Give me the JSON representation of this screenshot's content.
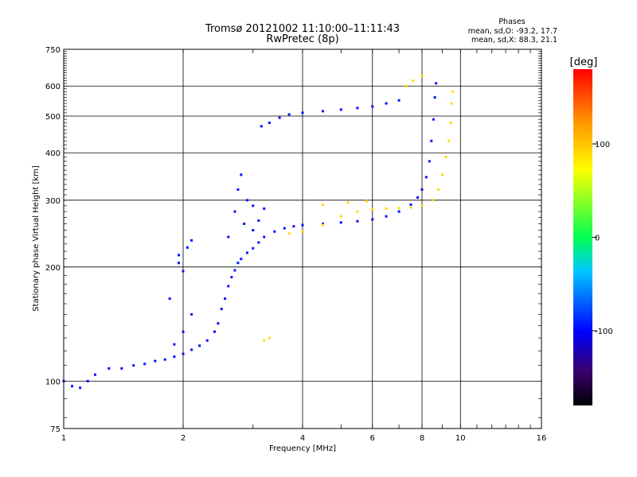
{
  "chart_data": {
    "type": "scatter",
    "title": "Tromsø 20121002 11:10:00–11:11:43",
    "subtitle": "RwPretec (8p)",
    "xlabel": "Frequency [MHz]",
    "ylabel": "Stationary phase Virtual Height [km]",
    "x_scale": "log",
    "y_scale": "log",
    "xlim": [
      1,
      16
    ],
    "ylim": [
      75,
      750
    ],
    "x_ticks": [
      1,
      2,
      4,
      6,
      8,
      10,
      16
    ],
    "x_tick_labels": [
      "1",
      "2",
      "4",
      "6",
      "8",
      "10",
      "16"
    ],
    "y_ticks": [
      75,
      100,
      200,
      300,
      400,
      500,
      600,
      750
    ],
    "y_tick_labels": [
      "75",
      "100",
      "200",
      "300",
      "400",
      "500",
      "600",
      "750"
    ],
    "grid": true,
    "legend": {
      "title": "Phases",
      "lines": [
        "mean, sd,O: -93.2, 17.7",
        "mean, sd,X:  88.3, 21.1"
      ]
    },
    "colorbar": {
      "label": "[deg]",
      "range": [
        -180,
        180
      ],
      "ticks": [
        100,
        0,
        -100
      ],
      "tick_labels": [
        "100",
        "0",
        "-100"
      ]
    },
    "series": [
      {
        "mode": "O",
        "phase_deg": -95,
        "points": [
          [
            1.0,
            100
          ],
          [
            1.05,
            97
          ],
          [
            1.1,
            96
          ],
          [
            1.15,
            100
          ],
          [
            1.2,
            104
          ],
          [
            1.3,
            108
          ],
          [
            1.4,
            108
          ],
          [
            1.5,
            110
          ],
          [
            1.6,
            111
          ],
          [
            1.7,
            113
          ],
          [
            1.8,
            114
          ],
          [
            1.9,
            116
          ],
          [
            2.0,
            118
          ],
          [
            2.1,
            121
          ],
          [
            2.2,
            124
          ],
          [
            2.3,
            128
          ],
          [
            2.4,
            135
          ],
          [
            2.45,
            142
          ],
          [
            2.5,
            155
          ],
          [
            2.55,
            165
          ],
          [
            2.6,
            178
          ],
          [
            2.65,
            188
          ],
          [
            2.7,
            196
          ],
          [
            2.75,
            205
          ],
          [
            2.8,
            210
          ],
          [
            2.9,
            218
          ],
          [
            3.0,
            224
          ],
          [
            3.1,
            232
          ],
          [
            3.2,
            240
          ],
          [
            3.4,
            248
          ],
          [
            3.6,
            253
          ],
          [
            3.8,
            256
          ],
          [
            4.0,
            258
          ],
          [
            4.5,
            260
          ],
          [
            5.0,
            262
          ],
          [
            5.5,
            264
          ],
          [
            6.0,
            267
          ],
          [
            6.5,
            272
          ],
          [
            7.0,
            280
          ],
          [
            7.5,
            292
          ],
          [
            7.8,
            305
          ],
          [
            8.0,
            320
          ],
          [
            8.2,
            345
          ],
          [
            8.35,
            380
          ],
          [
            8.45,
            430
          ],
          [
            8.55,
            490
          ],
          [
            8.62,
            560
          ],
          [
            8.68,
            610
          ],
          [
            1.9,
            125
          ],
          [
            2.0,
            135
          ],
          [
            2.1,
            150
          ],
          [
            1.85,
            165
          ],
          [
            1.95,
            215
          ],
          [
            2.05,
            225
          ],
          [
            2.1,
            235
          ],
          [
            1.95,
            205
          ],
          [
            2.0,
            195
          ],
          [
            2.6,
            240
          ],
          [
            2.7,
            280
          ],
          [
            2.75,
            320
          ],
          [
            2.8,
            350
          ],
          [
            2.9,
            300
          ],
          [
            3.0,
            290
          ],
          [
            3.1,
            265
          ],
          [
            3.2,
            285
          ],
          [
            3.0,
            250
          ],
          [
            2.85,
            260
          ],
          [
            3.15,
            470
          ],
          [
            3.3,
            480
          ],
          [
            3.5,
            495
          ],
          [
            3.7,
            505
          ],
          [
            4.0,
            510
          ],
          [
            4.5,
            515
          ],
          [
            5.0,
            520
          ],
          [
            5.5,
            525
          ],
          [
            6.0,
            530
          ],
          [
            6.5,
            540
          ],
          [
            7.0,
            550
          ]
        ]
      },
      {
        "mode": "X",
        "phase_deg": 90,
        "points": [
          [
            3.7,
            245
          ],
          [
            4.0,
            248
          ],
          [
            4.5,
            258
          ],
          [
            5.0,
            272
          ],
          [
            5.5,
            280
          ],
          [
            6.0,
            284
          ],
          [
            6.5,
            285
          ],
          [
            7.0,
            286
          ],
          [
            7.5,
            287
          ],
          [
            8.0,
            290
          ],
          [
            8.5,
            300
          ],
          [
            8.8,
            320
          ],
          [
            9.0,
            350
          ],
          [
            9.2,
            390
          ],
          [
            9.35,
            430
          ],
          [
            9.45,
            480
          ],
          [
            9.5,
            540
          ],
          [
            9.55,
            580
          ],
          [
            7.3,
            600
          ],
          [
            7.6,
            620
          ],
          [
            8.0,
            640
          ],
          [
            3.3,
            130
          ],
          [
            3.2,
            128
          ],
          [
            4.5,
            292
          ],
          [
            5.2,
            296
          ],
          [
            5.8,
            298
          ]
        ]
      }
    ]
  }
}
